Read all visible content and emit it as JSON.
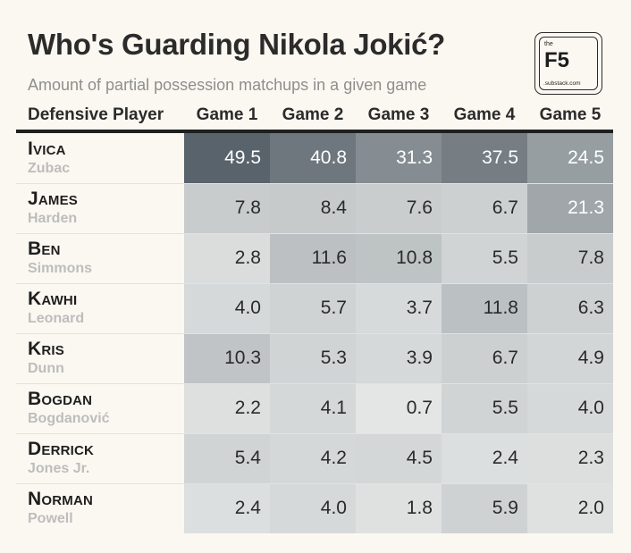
{
  "title": "Who's Guarding Nikola Jokić?",
  "subtitle": "Amount of partial possession matchups in a given game",
  "logo": {
    "top": "the",
    "main": "F5",
    "bottom": ".substack.com"
  },
  "colors": {
    "background": "#fbf8f1",
    "header_rule": "#1f1f1f",
    "cell_low": "#e9ebea",
    "cell_high": "#58626a"
  },
  "chart_data": {
    "type": "heatmap",
    "title": "Who's Guarding Nikola Jokić?",
    "subtitle": "Amount of partial possession matchups in a given game",
    "row_header": "Defensive Player",
    "columns": [
      "Game 1",
      "Game 2",
      "Game 3",
      "Game 4",
      "Game 5"
    ],
    "rows": [
      {
        "first": "Ivica",
        "last": "Zubac",
        "values": [
          49.5,
          40.8,
          31.3,
          37.5,
          24.5
        ]
      },
      {
        "first": "James",
        "last": "Harden",
        "values": [
          7.8,
          8.4,
          7.6,
          6.7,
          21.3
        ]
      },
      {
        "first": "Ben",
        "last": "Simmons",
        "values": [
          2.8,
          11.6,
          10.8,
          5.5,
          7.8
        ]
      },
      {
        "first": "Kawhi",
        "last": "Leonard",
        "values": [
          4.0,
          5.7,
          3.7,
          11.8,
          6.3
        ]
      },
      {
        "first": "Kris",
        "last": "Dunn",
        "values": [
          10.3,
          5.3,
          3.9,
          6.7,
          4.9
        ]
      },
      {
        "first": "Bogdan",
        "last": "Bogdanović",
        "values": [
          2.2,
          4.1,
          0.7,
          5.5,
          4.0
        ]
      },
      {
        "first": "Derrick",
        "last": "Jones Jr.",
        "values": [
          5.4,
          4.2,
          4.5,
          2.4,
          2.3
        ]
      },
      {
        "first": "Norman",
        "last": "Powell",
        "values": [
          2.4,
          4.0,
          1.8,
          5.9,
          2.0
        ]
      }
    ],
    "value_range": [
      0,
      50
    ]
  }
}
